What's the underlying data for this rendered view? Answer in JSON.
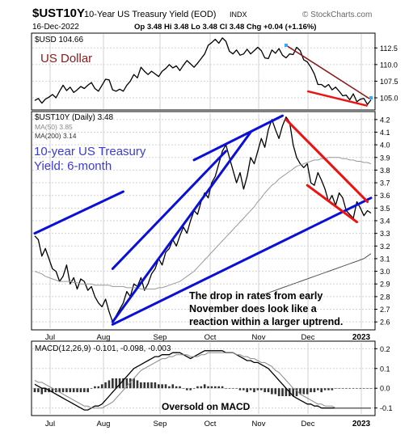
{
  "header": {
    "symbol": "$UST10Y",
    "name": "10-Year US Treasury Yield (EOD)",
    "exchange": "INDX",
    "brand": "© StockCharts.com",
    "date": "16-Dec-2022",
    "quote": "Op 3.48  Hi 3.48  Lo 3.48  Cl 3.48  Chg +0.04 (+1.16%)"
  },
  "panels": {
    "usd": {
      "legend": "$USD 104.66",
      "annotation": "US Dollar"
    },
    "yield": {
      "legend_main": "$UST10Y (Daily) 3.48",
      "legend_ma50": "MA(50) 3.85",
      "legend_ma200": "MA(200) 3.14",
      "annotation_line1": "10-year US Treasury",
      "annotation_line2": "Yield: 6-month",
      "commentary_line1": "The drop in rates from early",
      "commentary_line2": "November does look like a",
      "commentary_line3": "reaction within a larger uptrend."
    },
    "macd": {
      "legend": "MACD(12,26,9) -0.101, -0.098, -0.003",
      "annotation": "Oversold on MACD"
    }
  },
  "x_axis_labels": [
    "Jul",
    "Aug",
    "Sep",
    "Oct",
    "Nov",
    "Dec",
    "2023"
  ],
  "colors": {
    "price": "#000000",
    "ma50": "#9a9a9a",
    "ma200": "#555555",
    "trend_up": "#0a10d8",
    "trend_down": "#ee1111",
    "usd_annotation": "#8b1a1a",
    "yield_annotation": "#3b3bd6",
    "histogram": "#333333",
    "grid": "#d2d2d2",
    "marker": "#33aaff"
  },
  "chart_data": [
    {
      "type": "line",
      "name": "usd-panel",
      "ylim": [
        103.3,
        114.6
      ],
      "y_ticks": [
        105.0,
        107.5,
        110.0,
        112.5
      ],
      "y_tick_labels": [
        "105.0",
        "107.5",
        "110.0",
        "112.5"
      ],
      "series": [
        {
          "name": "$USD",
          "values": [
            104.6,
            104.9,
            104.2,
            104.8,
            105.1,
            105.5,
            105.0,
            106.0,
            106.9,
            106.1,
            106.6,
            105.8,
            106.2,
            106.7,
            106.4,
            106.9,
            107.3,
            106.4,
            106.0,
            106.9,
            107.8,
            107.7,
            106.2,
            106.0,
            106.3,
            106.0,
            106.9,
            107.5,
            108.5,
            108.0,
            109.6,
            109.0,
            108.5,
            109.0,
            108.6,
            108.2,
            109.0,
            109.4,
            110.0,
            109.5,
            109.8,
            109.1,
            109.9,
            110.6,
            110.1,
            109.6,
            110.2,
            110.9,
            111.6,
            112.9,
            113.3,
            113.8,
            113.2,
            114.0,
            113.5,
            112.0,
            111.6,
            112.2,
            111.4,
            111.6,
            112.3,
            111.6,
            112.1,
            112.6,
            112.1,
            111.0,
            110.9,
            112.2,
            111.7,
            112.4,
            111.4,
            111.0,
            111.6,
            111.5,
            112.6,
            112.1,
            110.7,
            110.4,
            109.6,
            108.6,
            107.0,
            107.0,
            106.6,
            107.0,
            106.2,
            106.6,
            106.0,
            105.3,
            105.4,
            104.7,
            105.6,
            104.4,
            104.8,
            104.9,
            104.0,
            104.7
          ]
        }
      ],
      "annotation_marker_value": 112.9,
      "annotation_marker_end_value": 105.0
    },
    {
      "type": "line",
      "name": "yield-panel",
      "ylim": [
        2.55,
        4.25
      ],
      "y_ticks": [
        2.6,
        2.7,
        2.8,
        2.9,
        3.0,
        3.1,
        3.2,
        3.3,
        3.4,
        3.5,
        3.6,
        3.7,
        3.8,
        3.9,
        4.0,
        4.1,
        4.2
      ],
      "y_tick_labels": [
        "2.6",
        "2.7",
        "2.8",
        "2.9",
        "3.0",
        "3.1",
        "3.2",
        "3.3",
        "3.4",
        "3.5",
        "3.6",
        "3.7",
        "3.8",
        "3.9",
        "4.0",
        "4.1",
        "4.2"
      ],
      "series": [
        {
          "name": "$UST10Y",
          "values": [
            3.28,
            3.25,
            3.12,
            3.18,
            3.1,
            3.02,
            3.0,
            2.92,
            2.96,
            3.05,
            2.9,
            2.95,
            2.86,
            2.94,
            2.92,
            2.85,
            2.88,
            2.8,
            2.75,
            2.72,
            2.78,
            2.68,
            2.6,
            2.65,
            2.7,
            2.75,
            2.84,
            2.8,
            2.9,
            2.88,
            2.95,
            2.85,
            2.9,
            2.98,
            3.02,
            3.1,
            3.05,
            3.15,
            3.18,
            3.25,
            3.2,
            3.28,
            3.35,
            3.3,
            3.4,
            3.48,
            3.45,
            3.55,
            3.62,
            3.58,
            3.7,
            3.75,
            3.85,
            3.95,
            4.0,
            3.9,
            3.8,
            3.7,
            3.78,
            3.65,
            3.75,
            3.9,
            3.85,
            3.95,
            4.05,
            3.98,
            4.12,
            4.2,
            4.12,
            4.05,
            4.15,
            4.22,
            4.18,
            4.0,
            3.9,
            3.85,
            3.82,
            3.85,
            3.7,
            3.68,
            3.78,
            3.72,
            3.65,
            3.55,
            3.6,
            3.52,
            3.62,
            3.58,
            3.48,
            3.45,
            3.42,
            3.55,
            3.5,
            3.44,
            3.48,
            3.46
          ]
        },
        {
          "name": "MA(50)",
          "values": [
            3.0,
            2.99,
            2.98,
            2.96,
            2.95,
            2.94,
            2.93,
            2.92,
            2.92,
            2.92,
            2.92,
            2.91,
            2.91,
            2.9,
            2.9,
            2.9,
            2.9,
            2.89,
            2.89,
            2.89,
            2.89,
            2.89,
            2.88,
            2.88,
            2.88,
            2.88,
            2.87,
            2.87,
            2.87,
            2.87,
            2.86,
            2.86,
            2.86,
            2.86,
            2.86,
            2.87,
            2.87,
            2.88,
            2.89,
            2.9,
            2.91,
            2.92,
            2.94,
            2.96,
            2.98,
            3.0,
            3.03,
            3.06,
            3.09,
            3.12,
            3.15,
            3.18,
            3.21,
            3.24,
            3.27,
            3.3,
            3.33,
            3.36,
            3.39,
            3.42,
            3.45,
            3.48,
            3.51,
            3.55,
            3.58,
            3.62,
            3.65,
            3.68,
            3.7,
            3.73,
            3.75,
            3.77,
            3.79,
            3.81,
            3.83,
            3.84,
            3.85,
            3.86,
            3.87,
            3.88,
            3.88,
            3.89,
            3.89,
            3.9,
            3.9,
            3.9,
            3.9,
            3.89,
            3.89,
            3.88,
            3.88,
            3.87,
            3.87,
            3.86,
            3.86,
            3.85
          ]
        },
        {
          "name": "MA(200)",
          "values": [
            null,
            null,
            null,
            null,
            null,
            null,
            null,
            null,
            null,
            null,
            null,
            null,
            null,
            null,
            null,
            null,
            null,
            null,
            null,
            null,
            null,
            null,
            null,
            null,
            null,
            null,
            null,
            null,
            null,
            null,
            null,
            null,
            null,
            null,
            null,
            null,
            null,
            null,
            null,
            null,
            null,
            null,
            null,
            null,
            null,
            null,
            null,
            null,
            null,
            null,
            null,
            null,
            null,
            null,
            null,
            null,
            null,
            null,
            null,
            null,
            null,
            null,
            null,
            null,
            null,
            2.82,
            2.83,
            2.84,
            2.85,
            2.86,
            2.87,
            2.88,
            2.89,
            2.9,
            2.91,
            2.92,
            2.93,
            2.94,
            2.95,
            2.96,
            2.97,
            2.98,
            2.99,
            3.0,
            3.01,
            3.02,
            3.03,
            3.04,
            3.05,
            3.06,
            3.07,
            3.08,
            3.09,
            3.1,
            3.12,
            3.14
          ]
        }
      ],
      "trend_lines": [
        {
          "color": "trend_up",
          "start": [
            0,
            3.3
          ],
          "end": [
            25,
            3.63
          ]
        },
        {
          "color": "trend_up",
          "start": [
            22,
            2.58
          ],
          "end": [
            95,
            3.58
          ]
        },
        {
          "color": "trend_up",
          "start": [
            22,
            2.6
          ],
          "end": [
            61,
            4.1
          ]
        },
        {
          "color": "trend_up",
          "start": [
            22,
            3.02
          ],
          "end": [
            54,
            3.95
          ]
        },
        {
          "color": "trend_up",
          "start": [
            45,
            3.88
          ],
          "end": [
            70,
            4.23
          ]
        },
        {
          "color": "trend_down",
          "start": [
            71,
            4.2
          ],
          "end": [
            94,
            3.55
          ]
        },
        {
          "color": "trend_down",
          "start": [
            77,
            3.68
          ],
          "end": [
            91,
            3.39
          ]
        }
      ]
    },
    {
      "type": "line",
      "name": "macd-panel",
      "ylim": [
        -0.13,
        0.23
      ],
      "y_ticks": [
        -0.1,
        0.0,
        0.1,
        0.2
      ],
      "y_tick_labels": [
        "-0.1",
        "0.0",
        "0.1",
        "0.2"
      ],
      "series": [
        {
          "name": "MACD",
          "values": [
            0.02,
            0.01,
            0.0,
            0.0,
            -0.01,
            -0.02,
            -0.03,
            -0.04,
            -0.05,
            -0.06,
            -0.07,
            -0.08,
            -0.09,
            -0.1,
            -0.11,
            -0.11,
            -0.1,
            -0.09,
            -0.09,
            -0.08,
            -0.06,
            -0.04,
            -0.02,
            0.0,
            0.02,
            0.04,
            0.06,
            0.08,
            0.1,
            0.11,
            0.12,
            0.13,
            0.14,
            0.15,
            0.16,
            0.16,
            0.17,
            0.17,
            0.17,
            0.18,
            0.18,
            0.18,
            0.17,
            0.16,
            0.15,
            0.16,
            0.17,
            0.18,
            0.19,
            0.19,
            0.19,
            0.19,
            0.19,
            0.19,
            0.18,
            0.18,
            0.18,
            0.17,
            0.16,
            0.15,
            0.14,
            0.14,
            0.13,
            0.13,
            0.12,
            0.11,
            0.1,
            0.08,
            0.06,
            0.04,
            0.02,
            0.0,
            -0.02,
            -0.04,
            -0.05,
            -0.06,
            -0.07,
            -0.08,
            -0.08,
            -0.09,
            -0.09,
            -0.1,
            -0.1,
            -0.1,
            -0.1,
            -0.1,
            -0.1,
            -0.1,
            -0.1,
            -0.1,
            -0.1,
            -0.1,
            -0.1,
            -0.1,
            -0.1,
            -0.1
          ]
        },
        {
          "name": "Signal",
          "values": [
            0.04,
            0.03,
            0.03,
            0.02,
            0.01,
            0.0,
            -0.01,
            -0.02,
            -0.03,
            -0.04,
            -0.05,
            -0.06,
            -0.07,
            -0.08,
            -0.09,
            -0.09,
            -0.1,
            -0.1,
            -0.1,
            -0.1,
            -0.09,
            -0.08,
            -0.07,
            -0.05,
            -0.03,
            -0.01,
            0.01,
            0.03,
            0.05,
            0.07,
            0.09,
            0.1,
            0.11,
            0.12,
            0.13,
            0.14,
            0.15,
            0.15,
            0.16,
            0.16,
            0.17,
            0.17,
            0.17,
            0.17,
            0.16,
            0.16,
            0.16,
            0.17,
            0.17,
            0.18,
            0.18,
            0.18,
            0.18,
            0.18,
            0.18,
            0.18,
            0.18,
            0.17,
            0.17,
            0.16,
            0.16,
            0.15,
            0.15,
            0.14,
            0.13,
            0.13,
            0.12,
            0.11,
            0.09,
            0.08,
            0.06,
            0.04,
            0.02,
            0.0,
            -0.01,
            -0.03,
            -0.04,
            -0.05,
            -0.06,
            -0.07,
            -0.08,
            -0.08,
            -0.09,
            -0.09,
            -0.09,
            -0.1,
            -0.1,
            -0.1,
            -0.1,
            -0.1,
            -0.1,
            -0.1,
            -0.1,
            -0.1,
            -0.1,
            -0.1
          ]
        }
      ],
      "histogram": [
        -0.02,
        -0.02,
        -0.03,
        -0.02,
        -0.02,
        -0.02,
        -0.02,
        -0.02,
        -0.02,
        -0.02,
        -0.02,
        -0.02,
        -0.02,
        -0.02,
        -0.02,
        -0.02,
        0.0,
        0.01,
        0.01,
        0.02,
        0.03,
        0.04,
        0.05,
        0.05,
        0.05,
        0.05,
        0.05,
        0.05,
        0.05,
        0.04,
        0.03,
        0.03,
        0.03,
        0.03,
        0.03,
        0.02,
        0.02,
        0.02,
        0.01,
        0.02,
        0.01,
        0.01,
        0.0,
        -0.01,
        -0.01,
        0.0,
        0.01,
        0.01,
        0.02,
        0.01,
        0.01,
        0.01,
        0.01,
        0.01,
        0.0,
        0.0,
        0.0,
        0.0,
        -0.01,
        -0.01,
        -0.02,
        -0.01,
        -0.02,
        -0.01,
        -0.01,
        -0.02,
        -0.02,
        -0.03,
        -0.03,
        -0.04,
        -0.04,
        -0.04,
        -0.04,
        -0.04,
        -0.04,
        -0.03,
        -0.03,
        -0.03,
        -0.02,
        -0.02,
        -0.01,
        -0.02,
        -0.01,
        -0.01,
        -0.01,
        0.0,
        0.0,
        0.0,
        0.0,
        0.0,
        0.0,
        0.0,
        0.0,
        0.0,
        0.0,
        0.0
      ]
    }
  ]
}
